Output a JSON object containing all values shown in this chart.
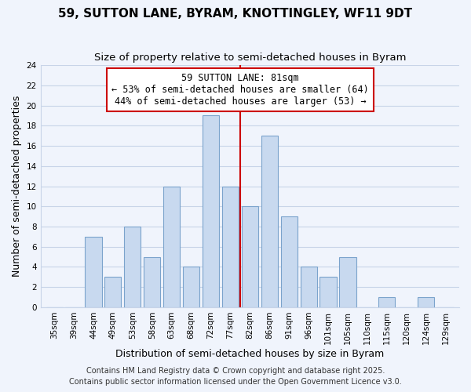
{
  "title": "59, SUTTON LANE, BYRAM, KNOTTINGLEY, WF11 9DT",
  "subtitle": "Size of property relative to semi-detached houses in Byram",
  "xlabel": "Distribution of semi-detached houses by size in Byram",
  "ylabel": "Number of semi-detached properties",
  "bin_labels": [
    "35sqm",
    "39sqm",
    "44sqm",
    "49sqm",
    "53sqm",
    "58sqm",
    "63sqm",
    "68sqm",
    "72sqm",
    "77sqm",
    "82sqm",
    "86sqm",
    "91sqm",
    "96sqm",
    "101sqm",
    "105sqm",
    "110sqm",
    "115sqm",
    "120sqm",
    "124sqm",
    "129sqm"
  ],
  "bar_values": [
    0,
    0,
    7,
    3,
    8,
    5,
    12,
    4,
    19,
    12,
    10,
    17,
    9,
    4,
    3,
    5,
    0,
    1,
    0,
    1,
    0
  ],
  "bar_color": "#c8d9ef",
  "bar_edge_color": "#7ba3cc",
  "vline_x": 10.0,
  "vline_color": "#cc0000",
  "annotation_text": "59 SUTTON LANE: 81sqm\n← 53% of semi-detached houses are smaller (64)\n44% of semi-detached houses are larger (53) →",
  "annotation_box_color": "#ffffff",
  "annotation_box_edge_color": "#cc0000",
  "ylim": [
    0,
    24
  ],
  "yticks": [
    0,
    2,
    4,
    6,
    8,
    10,
    12,
    14,
    16,
    18,
    20,
    22,
    24
  ],
  "footer1": "Contains HM Land Registry data © Crown copyright and database right 2025.",
  "footer2": "Contains public sector information licensed under the Open Government Licence v3.0.",
  "bg_color": "#f0f4fc",
  "grid_color": "#c8d4e8",
  "title_fontsize": 11,
  "subtitle_fontsize": 9.5,
  "axis_label_fontsize": 9,
  "tick_fontsize": 7.5,
  "annotation_fontsize": 8.5,
  "footer_fontsize": 7
}
